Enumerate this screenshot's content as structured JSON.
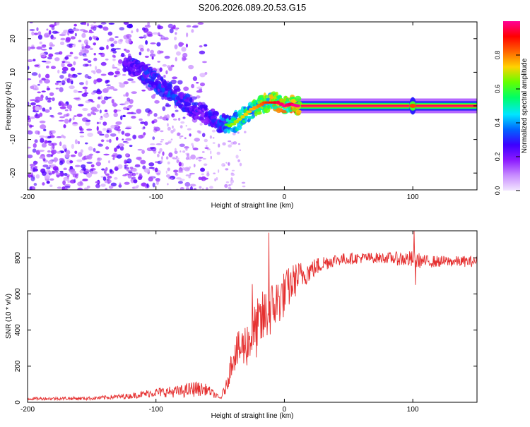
{
  "chart_data": [
    {
      "type": "heatmap",
      "title": "S206.2026.089.20.53.G15",
      "xlabel": "Height of straight line (km)",
      "ylabel": "Frequency (Hz)",
      "xlim": [
        -200,
        150
      ],
      "ylim": [
        -25,
        25
      ],
      "xticks": [
        -200,
        -100,
        0,
        100
      ],
      "xtick_labels": [
        "-200",
        "-100",
        "0",
        "100"
      ],
      "yticks": [
        -20,
        -10,
        0,
        10,
        20
      ],
      "ytick_labels": [
        "-20",
        "-10",
        "0",
        "10",
        "20"
      ],
      "colorbar": {
        "label": "Normalized spectral amplitude",
        "range": [
          0,
          1
        ],
        "ticks": [
          0,
          0.2,
          0.4,
          0.6,
          0.8
        ],
        "tick_labels": [
          "0.0",
          "0.2",
          "0.4",
          "0.6",
          "0.8"
        ],
        "colors": [
          "#f2e6ff",
          "#c88cff",
          "#8c1aff",
          "#3c00ff",
          "#0064ff",
          "#00e6ff",
          "#00ff64",
          "#64ff00",
          "#ffd200",
          "#ff6400",
          "#ff0000",
          "#ff0096"
        ]
      },
      "ridge": {
        "x": [
          -125,
          -115,
          -100,
          -85,
          -70,
          -60,
          -50,
          -42,
          -35,
          -25,
          -15,
          -5,
          0,
          5,
          10,
          20,
          100,
          150
        ],
        "freq": [
          13,
          11,
          7,
          3,
          -1,
          -3,
          -5,
          -6,
          -4,
          -1,
          1,
          1,
          0,
          0.5,
          0,
          0,
          0,
          0
        ],
        "amplitude": [
          0.25,
          0.3,
          0.35,
          0.35,
          0.3,
          0.3,
          0.35,
          0.5,
          0.55,
          0.6,
          0.7,
          0.8,
          0.85,
          0.8,
          0.9,
          0.95,
          0.95,
          0.95
        ]
      },
      "noise_region_x": [
        -200,
        -60
      ]
    },
    {
      "type": "line",
      "title": "",
      "xlabel": "Height of straight line (km)",
      "ylabel": "SNR (10 * v/v)",
      "xlim": [
        -200,
        150
      ],
      "ylim": [
        0,
        950
      ],
      "xticks": [
        -200,
        -100,
        0,
        100
      ],
      "xtick_labels": [
        "-200",
        "-100",
        "0",
        "100"
      ],
      "yticks": [
        0,
        200,
        400,
        600,
        800
      ],
      "ytick_labels": [
        "0",
        "200",
        "400",
        "600",
        "800"
      ],
      "line_color": "#e53030",
      "x": [
        -200,
        -150,
        -120,
        -100,
        -80,
        -70,
        -60,
        -50,
        -45,
        -40,
        -35,
        -30,
        -25,
        -20,
        -15,
        -10,
        -5,
        0,
        5,
        10,
        20,
        30,
        40,
        60,
        80,
        100,
        110,
        130,
        150
      ],
      "y": [
        20,
        22,
        35,
        55,
        60,
        75,
        70,
        20,
        90,
        260,
        290,
        320,
        370,
        420,
        480,
        520,
        560,
        600,
        650,
        690,
        730,
        770,
        790,
        800,
        800,
        790,
        780,
        780,
        780
      ],
      "noise": [
        8,
        10,
        15,
        25,
        35,
        45,
        30,
        10,
        40,
        90,
        110,
        130,
        150,
        170,
        160,
        150,
        140,
        130,
        110,
        90,
        60,
        45,
        35,
        30,
        30,
        50,
        35,
        30,
        30
      ],
      "spikes": [
        {
          "x": -12,
          "y": 940
        },
        {
          "x": -25,
          "y": 655
        },
        {
          "x": 101,
          "y": 950
        },
        {
          "x": 102,
          "y": 650
        }
      ]
    }
  ]
}
